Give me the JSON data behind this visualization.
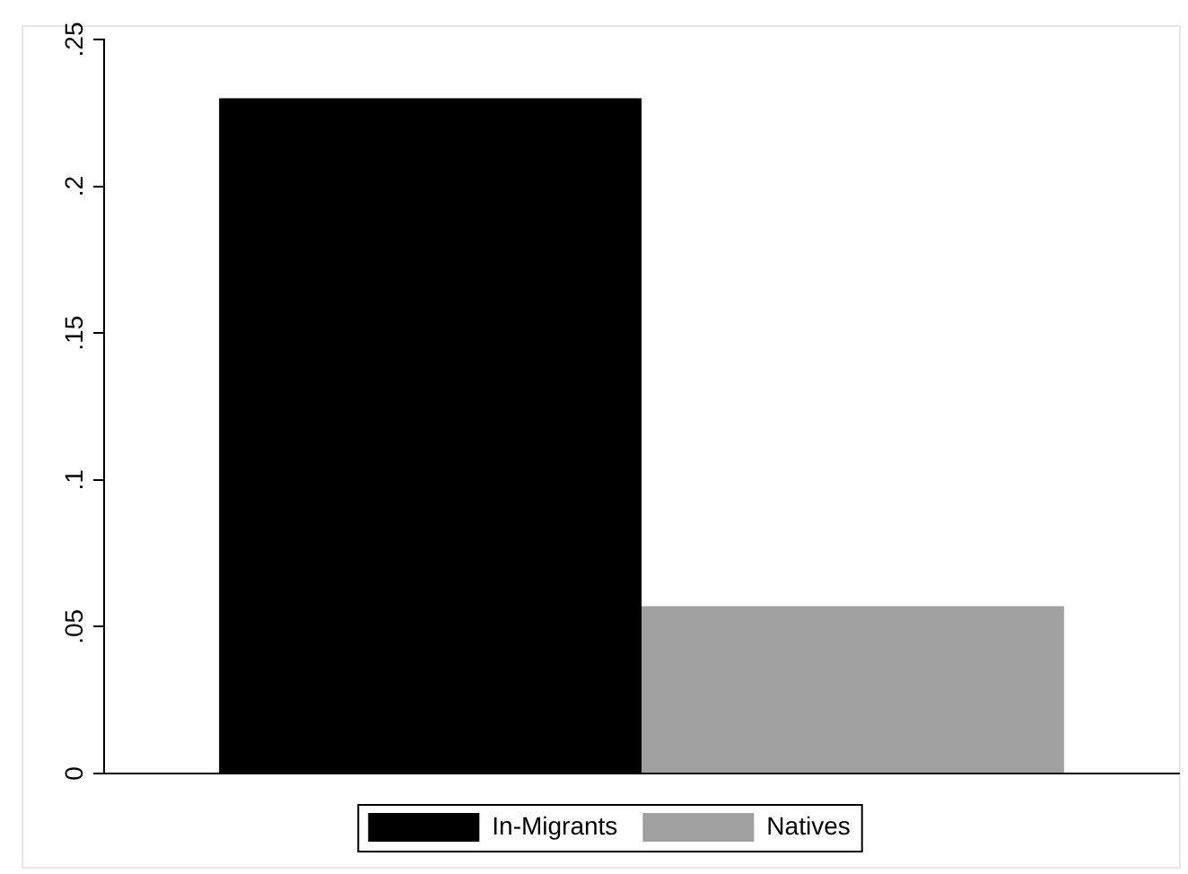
{
  "chart_data": {
    "type": "bar",
    "categories": [
      null
    ],
    "series": [
      {
        "name": "In-Migrants",
        "color": "#000000",
        "values": [
          0.23
        ]
      },
      {
        "name": "Natives",
        "color": "#a0a0a0",
        "values": [
          0.057
        ]
      }
    ],
    "ylim": [
      0,
      0.25
    ],
    "yticks": [
      {
        "value": 0,
        "label": "0"
      },
      {
        "value": 0.05,
        "label": ".05"
      },
      {
        "value": 0.1,
        "label": ".1"
      },
      {
        "value": 0.15,
        "label": ".15"
      },
      {
        "value": 0.2,
        "label": ".2"
      },
      {
        "value": 0.25,
        "label": ".25"
      }
    ],
    "grid": false,
    "legend": "bottom"
  }
}
